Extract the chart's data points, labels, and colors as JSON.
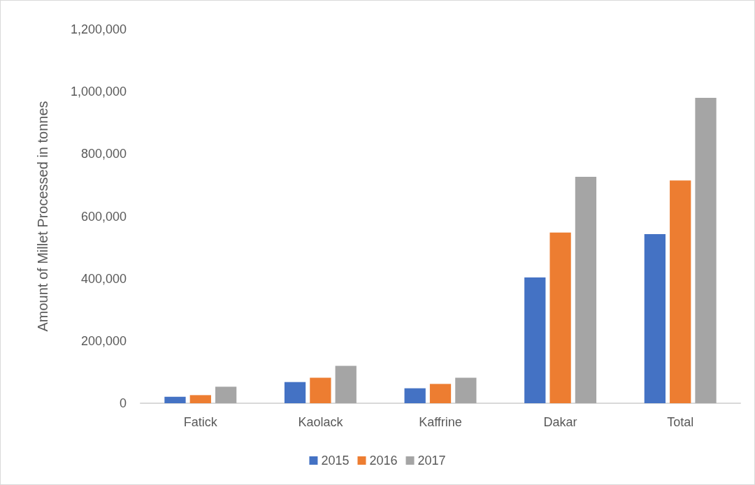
{
  "chart_data": {
    "type": "bar",
    "ylabel": "Amount of Millet Processed in tonnes",
    "categories": [
      "Fatick",
      "Kaolack",
      "Kaffrine",
      "Dakar",
      "Total"
    ],
    "series": [
      {
        "name": "2015",
        "color": "#4472c4",
        "values": [
          21000,
          68000,
          48000,
          404000,
          543000
        ]
      },
      {
        "name": "2016",
        "color": "#ed7d31",
        "values": [
          26000,
          82000,
          62000,
          548000,
          715000
        ]
      },
      {
        "name": "2017",
        "color": "#a5a5a5",
        "values": [
          53000,
          120000,
          82000,
          727000,
          980000
        ]
      }
    ],
    "ylim": [
      0,
      1200000
    ],
    "yticks": [
      0,
      {
        "value": 200000,
        "label": "200,000"
      },
      {
        "value": 400000,
        "label": "400,000"
      },
      {
        "value": 600000,
        "label": "600,000"
      },
      {
        "value": 800000,
        "label": "800,000"
      },
      {
        "value": 1000000,
        "label": "1,000,000"
      },
      {
        "value": 1200000,
        "label": "1,200,000"
      }
    ],
    "grid": false,
    "legend": "bottom"
  }
}
